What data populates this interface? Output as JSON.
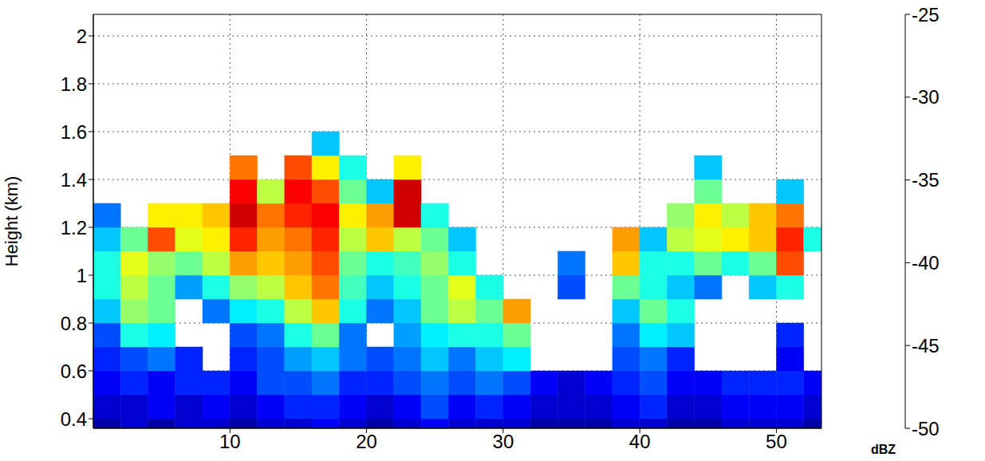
{
  "chart_data": {
    "type": "heatmap",
    "ylabel": "Height (km)",
    "grid": true,
    "xlim": [
      0,
      53.3
    ],
    "xticks": [
      10,
      20,
      30,
      40,
      50
    ],
    "ylim": [
      0.36,
      2.09
    ],
    "yticks": [
      0.4,
      0.6,
      0.8,
      1,
      1.2,
      1.4,
      1.6,
      1.8,
      2
    ],
    "x_bins": [
      0,
      2,
      4,
      6,
      8,
      10,
      12,
      14,
      16,
      18,
      20,
      22,
      24,
      26,
      28,
      30,
      32,
      34,
      36,
      38,
      40,
      42,
      44,
      46,
      48,
      50,
      52,
      54
    ],
    "y_bins": [
      0.3,
      0.4,
      0.5,
      0.6,
      0.7,
      0.8,
      0.9,
      1.0,
      1.1,
      1.2,
      1.3,
      1.4,
      1.5,
      1.6
    ],
    "z": [
      [
        -49,
        -48,
        -49,
        -48,
        -48,
        -49,
        -48,
        -48,
        -47,
        -48,
        -49,
        -48,
        -47,
        -48,
        -48,
        -48,
        -49,
        -49,
        -49,
        -48,
        -48,
        -49,
        -49,
        -48,
        -48,
        -48,
        -49
      ],
      [
        -48,
        -48,
        -47,
        -48,
        -47,
        -48,
        -47,
        -46,
        -46,
        -47,
        -48,
        -47,
        -45,
        -47,
        -46,
        -47,
        -48,
        -48,
        -48,
        -47,
        -46,
        -48,
        -48,
        -47,
        -47,
        -47,
        -48
      ],
      [
        -47,
        -46,
        -47,
        -46,
        -46,
        -47,
        -45,
        -45,
        -44,
        -46,
        -46,
        -45,
        -44,
        -45,
        -44,
        -45,
        -47,
        -48,
        -47,
        -46,
        -45,
        -47,
        -47,
        -46,
        -46,
        -46,
        -47
      ],
      [
        -46,
        -45,
        -44,
        -46,
        null,
        -46,
        -45,
        -43,
        -42,
        -44,
        -45,
        -44,
        -42,
        -44,
        -42,
        -41,
        null,
        null,
        null,
        -45,
        -44,
        -46,
        null,
        null,
        null,
        -47,
        null
      ],
      [
        -45,
        -40,
        -41,
        null,
        null,
        -45,
        -44,
        -40,
        -38,
        -44,
        null,
        -43,
        -41,
        -40,
        -40,
        -38,
        null,
        null,
        null,
        -44,
        -41,
        -42,
        null,
        null,
        null,
        -46,
        null
      ],
      [
        -42,
        -37,
        -38,
        null,
        -44,
        -41,
        -40,
        -36,
        -33,
        -40,
        -44,
        -42,
        -38,
        -36,
        -38,
        -32,
        null,
        null,
        null,
        -42,
        -38,
        -40,
        null,
        null,
        null,
        null,
        null
      ],
      [
        -40,
        -36,
        -38,
        -43,
        -40,
        -37,
        -36,
        -33,
        -31,
        -39,
        -42,
        -40,
        -38,
        -35,
        -40,
        null,
        null,
        -45,
        null,
        -38,
        -40,
        -42,
        -44,
        null,
        -42,
        -40,
        null
      ],
      [
        -40,
        -35,
        -37,
        -38,
        -36,
        -32,
        -33,
        -32,
        -30,
        -38,
        -40,
        -39,
        -37,
        -40,
        null,
        null,
        null,
        -44,
        null,
        -33,
        -40,
        -40,
        -38,
        -40,
        -38,
        -30,
        null
      ],
      [
        -42,
        -38,
        -30,
        -35,
        -34,
        -29,
        -32,
        -31,
        -29,
        -36,
        -33,
        -36,
        -38,
        -42,
        null,
        null,
        null,
        null,
        null,
        -32,
        -42,
        -36,
        -35,
        -34,
        -33,
        -29,
        -40
      ],
      [
        -44,
        null,
        -34,
        -34,
        -33,
        -27,
        -31,
        -29,
        -28,
        -34,
        -32,
        -27,
        -40,
        null,
        null,
        null,
        null,
        null,
        null,
        null,
        null,
        -37,
        -34,
        -36,
        -33,
        -31,
        null
      ],
      [
        null,
        null,
        null,
        null,
        null,
        -28,
        -36,
        -28,
        -30,
        -38,
        -42,
        -27,
        null,
        null,
        null,
        null,
        null,
        null,
        null,
        null,
        null,
        null,
        -38,
        null,
        null,
        -42,
        null
      ],
      [
        null,
        null,
        null,
        null,
        null,
        -31,
        null,
        -30,
        -34,
        -40,
        null,
        -34,
        null,
        null,
        null,
        null,
        null,
        null,
        null,
        null,
        null,
        null,
        -42,
        null,
        null,
        null,
        null
      ],
      [
        null,
        null,
        null,
        null,
        null,
        null,
        null,
        null,
        -42,
        null,
        null,
        null,
        null,
        null,
        null,
        null,
        null,
        null,
        null,
        null,
        null,
        null,
        null,
        null,
        null,
        null,
        null
      ]
    ],
    "colorbar": {
      "lim": [
        -50,
        -25
      ],
      "ticks": [
        -50,
        -45,
        -40,
        -35,
        -30,
        -25
      ],
      "label": "dBZ"
    }
  }
}
